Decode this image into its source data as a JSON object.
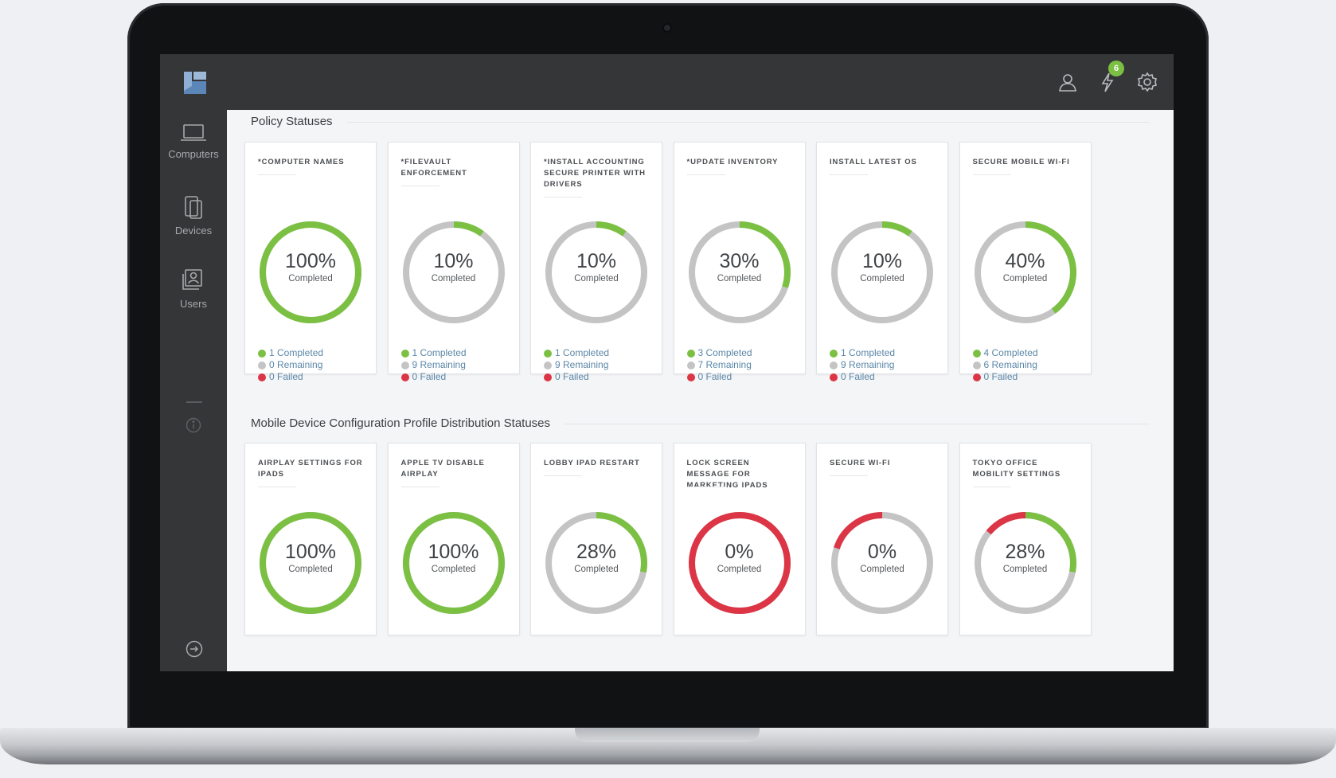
{
  "colors": {
    "completed": "#7bc043",
    "remaining": "#c4c4c4",
    "failed": "#dc3545",
    "sidebar_bg": "#353638",
    "accent": "#5a86b8"
  },
  "topbar": {
    "logo": "jamf-logo",
    "icons": [
      "user-icon",
      "notification-bolt-icon",
      "gear-icon"
    ],
    "notification_count": "6"
  },
  "sidebar": {
    "items": [
      {
        "label": "Computers",
        "icon": "laptop-icon"
      },
      {
        "label": "Devices",
        "icon": "devices-icon"
      },
      {
        "label": "Users",
        "icon": "users-icon"
      }
    ],
    "info_icon": "info-icon",
    "logout_icon": "logout-arrow-icon"
  },
  "policy_section": {
    "title": "Policy Statuses",
    "cards": [
      {
        "title": "*Computer Names",
        "percent": "100%",
        "sub": "Completed",
        "completed_label": "1 Completed",
        "remaining_label": "0 Remaining",
        "failed_label": "0 Failed",
        "completed_fraction": 1.0,
        "failed_fraction": 0
      },
      {
        "title": "*FileVault Enforcement",
        "percent": "10%",
        "sub": "Completed",
        "completed_label": "1 Completed",
        "remaining_label": "9 Remaining",
        "failed_label": "0 Failed",
        "completed_fraction": 0.1,
        "failed_fraction": 0
      },
      {
        "title": "*Install Accounting Secure Printer with Drivers",
        "percent": "10%",
        "sub": "Completed",
        "completed_label": "1 Completed",
        "remaining_label": "9 Remaining",
        "failed_label": "0 Failed",
        "completed_fraction": 0.1,
        "failed_fraction": 0
      },
      {
        "title": "*Update Inventory",
        "percent": "30%",
        "sub": "Completed",
        "completed_label": "3 Completed",
        "remaining_label": "7 Remaining",
        "failed_label": "0 Failed",
        "completed_fraction": 0.3,
        "failed_fraction": 0
      },
      {
        "title": "Install Latest OS",
        "percent": "10%",
        "sub": "Completed",
        "completed_label": "1 Completed",
        "remaining_label": "9 Remaining",
        "failed_label": "0 Failed",
        "completed_fraction": 0.1,
        "failed_fraction": 0
      },
      {
        "title": "Secure Mobile Wi-Fi",
        "percent": "40%",
        "sub": "Completed",
        "completed_label": "4 Completed",
        "remaining_label": "6 Remaining",
        "failed_label": "0 Failed",
        "completed_fraction": 0.4,
        "failed_fraction": 0
      }
    ]
  },
  "mobile_section": {
    "title": "Mobile Device Configuration Profile Distribution Statuses",
    "cards": [
      {
        "title": "AirPlay Settings for iPads",
        "percent": "100%",
        "sub": "Completed",
        "completed_fraction": 1.0,
        "failed_fraction": 0
      },
      {
        "title": "Apple TV Disable AirPlay",
        "percent": "100%",
        "sub": "Completed",
        "completed_fraction": 1.0,
        "failed_fraction": 0
      },
      {
        "title": "Lobby iPad Restart",
        "percent": "28%",
        "sub": "Completed",
        "completed_fraction": 0.28,
        "failed_fraction": 0
      },
      {
        "title": "Lock Screen Message for Marketing iPads",
        "percent": "0%",
        "sub": "Completed",
        "completed_fraction": 0,
        "failed_fraction": 1.0
      },
      {
        "title": "Secure Wi-Fi",
        "percent": "0%",
        "sub": "Completed",
        "completed_fraction": 0,
        "failed_fraction": 0.2
      },
      {
        "title": "Tokyo Office Mobility Settings",
        "percent": "28%",
        "sub": "Completed",
        "completed_fraction": 0.28,
        "failed_fraction": 0.14
      }
    ]
  }
}
